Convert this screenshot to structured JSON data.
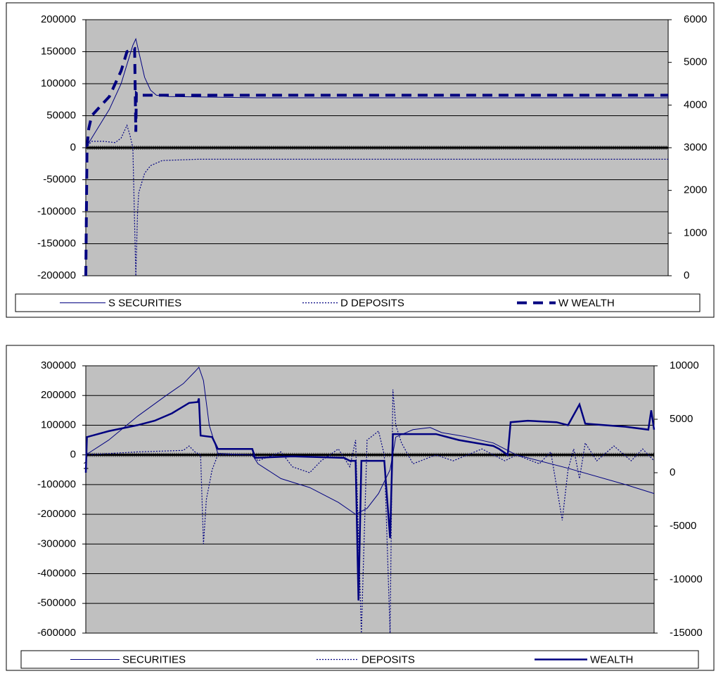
{
  "chart_data": [
    {
      "type": "line",
      "xlim": [
        1,
        100
      ],
      "xticks": [],
      "ylim": [
        -200000,
        200000
      ],
      "yticks": [
        -200000,
        -150000,
        -100000,
        -50000,
        0,
        50000,
        100000,
        150000,
        200000
      ],
      "y2lim": [
        0,
        6000
      ],
      "y2ticks": [
        0,
        1000,
        2000,
        3000,
        4000,
        5000,
        6000
      ],
      "grid": true,
      "legend": "bottom",
      "series": [
        {
          "name": "S SECURITIES",
          "color": "#000080",
          "line_style": "solid",
          "x": [
            1,
            3,
            5,
            7,
            8,
            9,
            9.5,
            10,
            11,
            12,
            13,
            15,
            30,
            100
          ],
          "values": [
            0,
            30000,
            60000,
            100000,
            130000,
            160000,
            170000,
            150000,
            110000,
            90000,
            82000,
            80000,
            78000,
            78000
          ]
        },
        {
          "name": "D DEPOSITS",
          "color": "#000080",
          "line_style": "dotted",
          "x": [
            1,
            2,
            4,
            6,
            7,
            8,
            8.5,
            9,
            9.5,
            9.8,
            10,
            11,
            12,
            14,
            20,
            100
          ],
          "values": [
            0,
            10000,
            10000,
            8000,
            15000,
            35000,
            20000,
            0,
            -200000,
            -100000,
            -70000,
            -40000,
            -28000,
            -20000,
            -18000,
            -18000
          ]
        },
        {
          "name": "W WEALTH",
          "color": "#000080",
          "line_style": "dashed",
          "x": [
            1,
            1.2,
            1.5,
            2,
            3,
            4,
            5,
            6,
            7,
            8,
            9,
            9.3,
            9.5,
            9.6,
            10,
            100
          ],
          "values": [
            -200000,
            0,
            30000,
            50000,
            60000,
            70000,
            80000,
            100000,
            120000,
            150000,
            155000,
            155000,
            25000,
            85000,
            82000,
            82000
          ]
        }
      ]
    },
    {
      "type": "line",
      "xlim": [
        1,
        100
      ],
      "xticks": [
        1
      ],
      "ylim": [
        -600000,
        300000
      ],
      "yticks": [
        -600000,
        -500000,
        -400000,
        -300000,
        -200000,
        -100000,
        0,
        100000,
        200000,
        300000
      ],
      "y2lim": [
        -15000,
        10000
      ],
      "y2ticks": [
        -15000,
        -10000,
        -5000,
        0,
        5000,
        10000
      ],
      "grid": true,
      "legend": "bottom",
      "series": [
        {
          "name": "SECURITIES",
          "color": "#000080",
          "line_style": "solid",
          "x": [
            1,
            5,
            10,
            15,
            18,
            20,
            20.7,
            21.5,
            22.5,
            24,
            30,
            31,
            35,
            40,
            45,
            48,
            50,
            52,
            54,
            55,
            58,
            61,
            63,
            67,
            72,
            76,
            85,
            95,
            100
          ],
          "values": [
            0,
            50000,
            130000,
            200000,
            240000,
            280000,
            295000,
            250000,
            100000,
            5000,
            0,
            -30000,
            -80000,
            -110000,
            -160000,
            -200000,
            -180000,
            -130000,
            -50000,
            60000,
            85000,
            92000,
            75000,
            62000,
            40000,
            0,
            -45000,
            -100000,
            -130000
          ]
        },
        {
          "name": "DEPOSITS",
          "color": "#000080",
          "line_style": "dotted",
          "x": [
            1,
            10,
            18,
            19,
            20,
            21,
            21.5,
            22,
            23,
            24,
            30,
            31,
            35,
            37,
            40,
            42,
            45,
            47,
            48,
            49,
            50,
            52,
            53,
            54,
            54.5,
            55,
            56,
            58,
            62,
            65,
            70,
            74,
            76,
            80,
            82,
            84,
            85,
            86,
            87,
            88,
            90,
            93,
            96,
            98,
            100
          ],
          "values": [
            0,
            10000,
            15000,
            30000,
            10000,
            0,
            -300000,
            -150000,
            -50000,
            0,
            0,
            -20000,
            10000,
            -40000,
            -60000,
            -20000,
            20000,
            -40000,
            50000,
            -600000,
            50000,
            80000,
            0,
            -600000,
            220000,
            100000,
            40000,
            -30000,
            0,
            -20000,
            20000,
            -20000,
            0,
            -30000,
            10000,
            -220000,
            -50000,
            20000,
            -80000,
            40000,
            -20000,
            30000,
            -20000,
            20000,
            -20000
          ]
        },
        {
          "name": "WEALTH",
          "color": "#000080",
          "line_style": "bold",
          "x": [
            1,
            1.2,
            5,
            10,
            13,
            16,
            19,
            20.5,
            20.7,
            21,
            23,
            24,
            30,
            30.5,
            37,
            46,
            47,
            48,
            48.5,
            49,
            53,
            54,
            54.5,
            62,
            66,
            72,
            73,
            74.5,
            75,
            78,
            83,
            85,
            87,
            88,
            95,
            99,
            99.5,
            100
          ],
          "values": [
            -60000,
            60000,
            80000,
            100000,
            115000,
            140000,
            175000,
            178000,
            190000,
            65000,
            60000,
            20000,
            20000,
            -10000,
            -5000,
            -10000,
            -20000,
            -20000,
            -490000,
            -20000,
            -20000,
            -280000,
            70000,
            70000,
            50000,
            30000,
            20000,
            0,
            110000,
            115000,
            110000,
            100000,
            170000,
            105000,
            95000,
            85000,
            150000,
            85000
          ]
        }
      ]
    }
  ]
}
